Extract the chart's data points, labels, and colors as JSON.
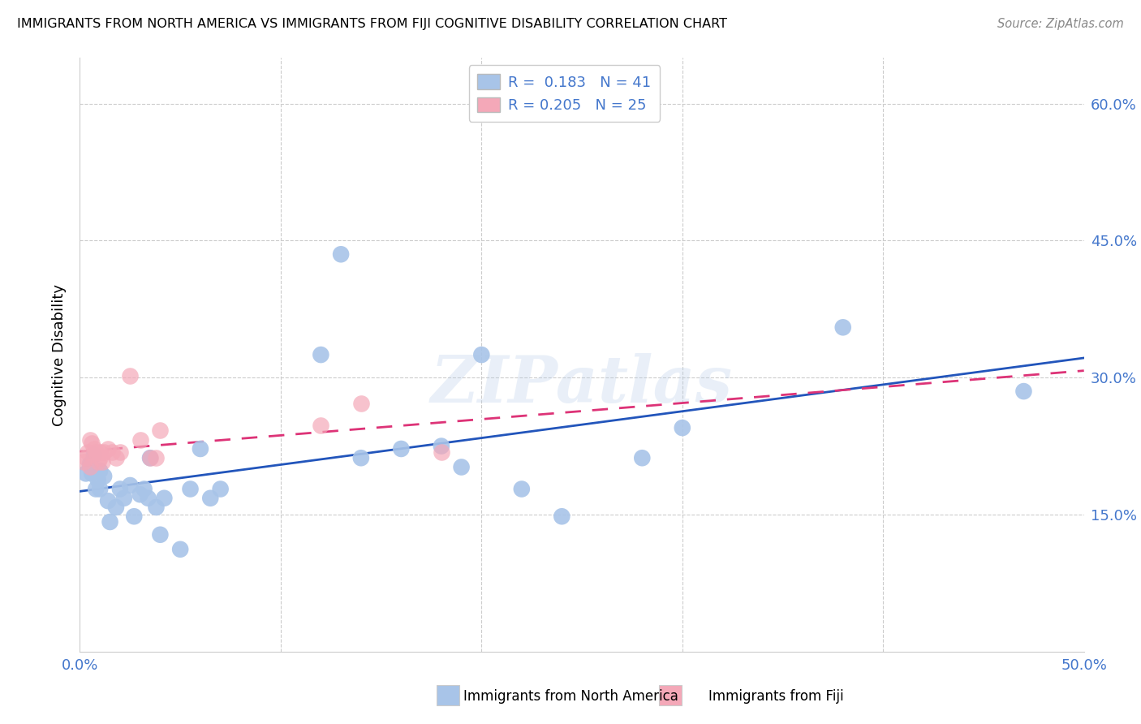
{
  "title": "IMMIGRANTS FROM NORTH AMERICA VS IMMIGRANTS FROM FIJI COGNITIVE DISABILITY CORRELATION CHART",
  "source": "Source: ZipAtlas.com",
  "ylabel": "Cognitive Disability",
  "legend_label1": "Immigrants from North America",
  "legend_label2": "Immigrants from Fiji",
  "R1": 0.183,
  "N1": 41,
  "R2": 0.205,
  "N2": 25,
  "xlim": [
    0.0,
    0.5
  ],
  "ylim": [
    0.0,
    0.65
  ],
  "xtick_positions": [
    0.0,
    0.1,
    0.2,
    0.3,
    0.4,
    0.5
  ],
  "xtick_labels": [
    "0.0%",
    "",
    "",
    "",
    "",
    "50.0%"
  ],
  "ytick_positions": [
    0.15,
    0.3,
    0.45,
    0.6
  ],
  "ytick_labels": [
    "15.0%",
    "30.0%",
    "45.0%",
    "60.0%"
  ],
  "color_blue_fill": "#a8c4e8",
  "color_pink_fill": "#f4a8b8",
  "color_blue_line": "#2255bb",
  "color_pink_line": "#dd3377",
  "color_axis_text": "#4477cc",
  "watermark": "ZIPatlas",
  "blue_x": [
    0.003,
    0.005,
    0.006,
    0.007,
    0.008,
    0.009,
    0.01,
    0.01,
    0.012,
    0.014,
    0.015,
    0.018,
    0.02,
    0.022,
    0.025,
    0.027,
    0.03,
    0.032,
    0.034,
    0.035,
    0.038,
    0.04,
    0.042,
    0.05,
    0.055,
    0.06,
    0.065,
    0.07,
    0.12,
    0.13,
    0.14,
    0.16,
    0.18,
    0.19,
    0.2,
    0.22,
    0.24,
    0.28,
    0.3,
    0.38,
    0.47
  ],
  "blue_y": [
    0.195,
    0.205,
    0.195,
    0.215,
    0.178,
    0.188,
    0.198,
    0.178,
    0.192,
    0.165,
    0.142,
    0.158,
    0.178,
    0.168,
    0.182,
    0.148,
    0.172,
    0.178,
    0.168,
    0.212,
    0.158,
    0.128,
    0.168,
    0.112,
    0.178,
    0.222,
    0.168,
    0.178,
    0.325,
    0.435,
    0.212,
    0.222,
    0.225,
    0.202,
    0.325,
    0.178,
    0.148,
    0.212,
    0.245,
    0.355,
    0.285
  ],
  "pink_x": [
    0.002,
    0.003,
    0.004,
    0.005,
    0.005,
    0.006,
    0.007,
    0.008,
    0.009,
    0.01,
    0.01,
    0.011,
    0.012,
    0.014,
    0.016,
    0.018,
    0.02,
    0.025,
    0.03,
    0.035,
    0.038,
    0.04,
    0.12,
    0.14,
    0.18
  ],
  "pink_y": [
    0.208,
    0.212,
    0.218,
    0.202,
    0.232,
    0.228,
    0.222,
    0.218,
    0.208,
    0.218,
    0.212,
    0.208,
    0.218,
    0.222,
    0.218,
    0.212,
    0.218,
    0.302,
    0.232,
    0.212,
    0.212,
    0.242,
    0.248,
    0.272,
    0.218
  ]
}
